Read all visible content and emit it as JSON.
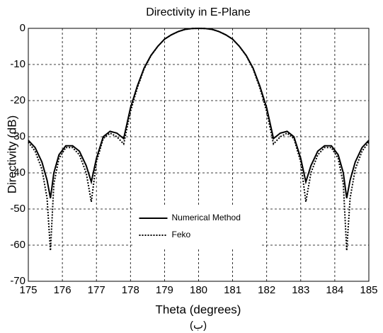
{
  "chart_data": {
    "type": "line",
    "title": "Directivity in E-Plane",
    "xlabel": "Theta (degrees)",
    "ylabel": "Directivity (dB)",
    "caption": "(ب)",
    "x": [
      175,
      175.2,
      175.4,
      175.55,
      175.65,
      175.75,
      175.9,
      176.1,
      176.3,
      176.5,
      176.7,
      176.85,
      177,
      177.2,
      177.4,
      177.6,
      177.8,
      178,
      178.2,
      178.4,
      178.6,
      178.8,
      179,
      179.2,
      179.4,
      179.6,
      179.8,
      180,
      180.2,
      180.4,
      180.6,
      180.8,
      181,
      181.2,
      181.4,
      181.6,
      181.8,
      182,
      182.2,
      182.4,
      182.6,
      182.8,
      183,
      183.15,
      183.3,
      183.5,
      183.7,
      183.9,
      184.1,
      184.25,
      184.35,
      184.45,
      184.6,
      184.8,
      185
    ],
    "series": [
      {
        "name": "Numerical Method",
        "color": "#000000",
        "linestyle": "solid",
        "values": [
          -31,
          -33,
          -37,
          -42,
          -47,
          -40,
          -35,
          -32.5,
          -32.5,
          -34,
          -38,
          -42.5,
          -36,
          -30,
          -28.5,
          -29,
          -30.5,
          -22,
          -16,
          -11,
          -7.5,
          -5,
          -3,
          -1.8,
          -0.9,
          -0.3,
          -0.05,
          0,
          -0.05,
          -0.3,
          -0.9,
          -1.8,
          -3,
          -5,
          -7.5,
          -11,
          -16,
          -22,
          -30.5,
          -29,
          -28.5,
          -30,
          -36,
          -42.5,
          -38,
          -34,
          -32.5,
          -32.5,
          -35,
          -40,
          -47,
          -42,
          -37,
          -33,
          -31
        ]
      },
      {
        "name": "Feko",
        "color": "#000000",
        "linestyle": "dotted",
        "values": [
          -31.5,
          -34,
          -39,
          -47,
          -61.5,
          -43,
          -36,
          -33,
          -33,
          -35,
          -40,
          -48,
          -37,
          -30.5,
          -29,
          -30,
          -32,
          -23,
          -16.5,
          -11.2,
          -7.6,
          -5,
          -3,
          -1.8,
          -0.9,
          -0.3,
          -0.05,
          0,
          -0.05,
          -0.3,
          -0.9,
          -1.8,
          -3,
          -5,
          -7.6,
          -11.2,
          -16.5,
          -23,
          -32,
          -30,
          -29,
          -30.5,
          -37,
          -48,
          -40,
          -35,
          -33,
          -33,
          -36,
          -43,
          -61.5,
          -47,
          -39,
          -34,
          -31.5
        ]
      }
    ],
    "xlim": [
      175,
      185
    ],
    "xticks": [
      175,
      176,
      177,
      178,
      179,
      180,
      181,
      182,
      183,
      184,
      185
    ],
    "ylim": [
      -70,
      0
    ],
    "yticks": [
      0,
      -10,
      -20,
      -30,
      -40,
      -50,
      -60,
      -70
    ],
    "grid": true,
    "legend": "lower center"
  }
}
